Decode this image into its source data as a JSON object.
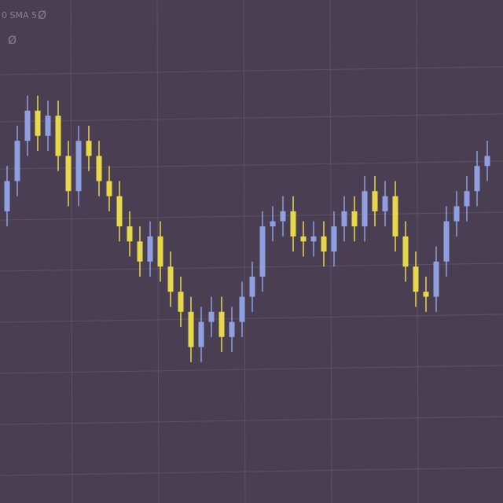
{
  "chart_data": {
    "type": "candlestick",
    "indicator_label": "0 SMA 5",
    "indicator_icon": "Ø",
    "up_color": "#8f9fe0",
    "down_color": "#e6d84a",
    "ylim": [
      0,
      100
    ],
    "grid": true,
    "open": [
      58,
      64,
      72,
      78,
      73,
      77,
      69,
      62,
      72,
      69,
      64,
      61,
      55,
      52,
      48,
      53,
      47,
      42,
      38,
      31,
      36,
      38,
      33,
      36,
      41,
      45,
      55,
      56,
      58,
      53,
      52,
      53,
      50,
      55,
      58,
      55,
      62,
      58,
      61,
      53,
      47,
      42,
      41,
      48,
      56,
      59,
      62,
      67
    ],
    "high": [
      67,
      75,
      81,
      81,
      80,
      80,
      72,
      75,
      75,
      72,
      67,
      64,
      58,
      55,
      56,
      56,
      50,
      45,
      41,
      39,
      41,
      41,
      39,
      44,
      48,
      58,
      59,
      61,
      61,
      56,
      56,
      56,
      58,
      61,
      61,
      65,
      65,
      64,
      64,
      56,
      50,
      45,
      51,
      59,
      62,
      65,
      70,
      72
    ],
    "low": [
      55,
      61,
      69,
      70,
      70,
      66,
      59,
      59,
      66,
      61,
      58,
      52,
      49,
      45,
      45,
      44,
      39,
      35,
      28,
      28,
      33,
      30,
      30,
      33,
      38,
      42,
      52,
      53,
      50,
      49,
      49,
      47,
      47,
      52,
      52,
      52,
      55,
      55,
      50,
      44,
      39,
      38,
      38,
      45,
      53,
      56,
      59,
      64
    ],
    "close": [
      64,
      72,
      78,
      73,
      77,
      69,
      62,
      72,
      69,
      64,
      61,
      55,
      52,
      48,
      53,
      47,
      42,
      38,
      31,
      36,
      38,
      33,
      36,
      41,
      45,
      55,
      56,
      58,
      53,
      52,
      53,
      50,
      55,
      58,
      55,
      62,
      58,
      61,
      53,
      47,
      42,
      41,
      48,
      56,
      59,
      62,
      67,
      69
    ]
  }
}
